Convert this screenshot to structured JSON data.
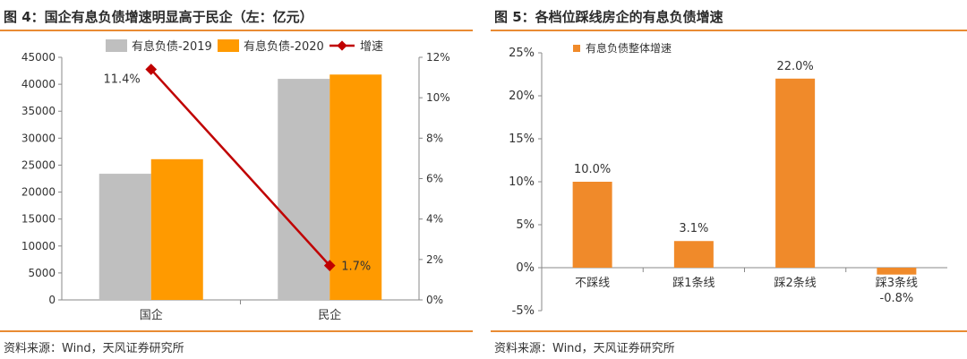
{
  "chart_data": [
    {
      "type": "bar",
      "title": "图 4：国企有息负债增速明显高于民企（左：亿元）",
      "categories": [
        "国企",
        "民企"
      ],
      "series": [
        {
          "name": "有息负债-2019",
          "values": [
            23400,
            41000
          ],
          "color": "#bfbfbf",
          "axis": "left"
        },
        {
          "name": "有息负债-2020",
          "values": [
            26100,
            41800
          ],
          "color": "#ff9a00",
          "axis": "left"
        },
        {
          "name": "增速",
          "type": "line",
          "values": [
            11.4,
            1.7
          ],
          "value_labels": [
            "11.4%",
            "1.7%"
          ],
          "color": "#c00000",
          "axis": "right"
        }
      ],
      "ylim_left": [
        0,
        45000
      ],
      "yticks_left": [
        "0",
        "5000",
        "10000",
        "15000",
        "20000",
        "25000",
        "30000",
        "35000",
        "40000",
        "45000"
      ],
      "ylim_right": [
        0,
        12
      ],
      "yticks_right": [
        "0%",
        "2%",
        "4%",
        "6%",
        "8%",
        "10%",
        "12%"
      ],
      "legend": "top-center",
      "grid": false,
      "source": "资料来源：Wind，天风证券研究所"
    },
    {
      "type": "bar",
      "title": "图 5：各档位踩线房企的有息负债增速",
      "categories": [
        "不踩线",
        "踩1条线",
        "踩2条线",
        "踩3条线"
      ],
      "series": [
        {
          "name": "有息负债整体增速",
          "values": [
            10.0,
            3.1,
            22.0,
            -0.8
          ],
          "value_labels": [
            "10.0%",
            "3.1%",
            "22.0%",
            "-0.8%"
          ],
          "color": "#f08a2a"
        }
      ],
      "ylim": [
        -5,
        25
      ],
      "yticks": [
        "-5%",
        "0%",
        "5%",
        "10%",
        "15%",
        "20%",
        "25%"
      ],
      "legend": "top-left",
      "grid": false,
      "source": "资料来源：Wind，天风证券研究所"
    }
  ]
}
